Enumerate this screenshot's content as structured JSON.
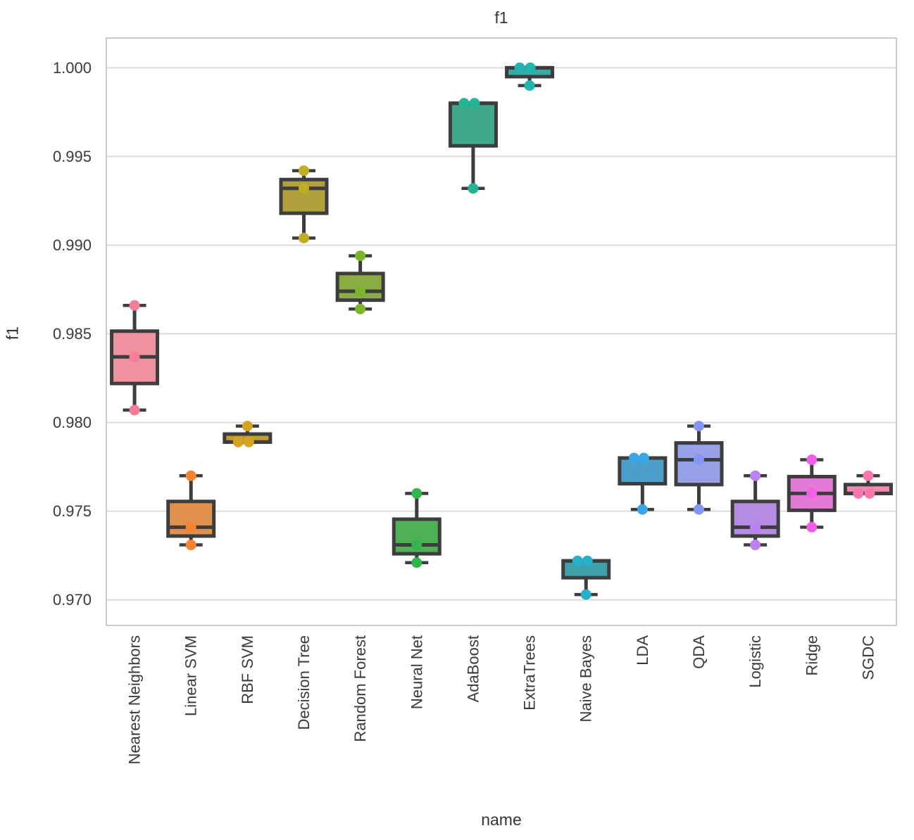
{
  "chart_data": {
    "type": "box",
    "title": "f1",
    "xlabel": "name",
    "ylabel": "f1",
    "ylim": [
      0.96856,
      1.00168
    ],
    "yticks": [
      0.97,
      0.975,
      0.98,
      0.985,
      0.99,
      0.995,
      1.0
    ],
    "ytick_labels": [
      "0.970",
      "0.975",
      "0.980",
      "0.985",
      "0.990",
      "0.995",
      "1.000"
    ],
    "grid": "horizontal",
    "legend": "none",
    "categories": [
      "Nearest Neighbors",
      "Linear SVM",
      "RBF SVM",
      "Decision Tree",
      "Random Forest",
      "Neural Net",
      "AdaBoost",
      "ExtraTrees",
      "Naive Bayes",
      "LDA",
      "QDA",
      "Logistic",
      "Ridge",
      "SGDC"
    ],
    "series": [
      {
        "name": "Nearest Neighbors",
        "box_color": "#f0919f",
        "point_color": "#f87c9a",
        "values": [
          0.9807,
          0.9837,
          0.9866
        ],
        "point_dx": [
          0,
          0,
          0
        ]
      },
      {
        "name": "Linear SVM",
        "box_color": "#e2904e",
        "point_color": "#f58431",
        "values": [
          0.9731,
          0.9741,
          0.977
        ],
        "point_dx": [
          0,
          0,
          0
        ]
      },
      {
        "name": "RBF SVM",
        "box_color": "#c49d32",
        "point_color": "#d6a423",
        "values": [
          0.9789,
          0.9789,
          0.9798
        ],
        "point_dx": [
          -13,
          2,
          0
        ]
      },
      {
        "name": "Decision Tree",
        "box_color": "#b1a13c",
        "point_color": "#c0ad24",
        "values": [
          0.9904,
          0.9932,
          0.9942
        ],
        "point_dx": [
          0,
          0,
          0
        ]
      },
      {
        "name": "Random Forest",
        "box_color": "#89ad44",
        "point_color": "#7cb52a",
        "values": [
          0.9864,
          0.9874,
          0.9894
        ],
        "point_dx": [
          0,
          0,
          0
        ]
      },
      {
        "name": "Neural Net",
        "box_color": "#4eb156",
        "point_color": "#33b54e",
        "values": [
          0.9721,
          0.9731,
          0.976
        ],
        "point_dx": [
          0,
          0,
          0
        ]
      },
      {
        "name": "AdaBoost",
        "box_color": "#40a98c",
        "point_color": "#26b497",
        "values": [
          0.9932,
          0.998,
          0.998
        ],
        "point_dx": [
          0,
          -13,
          2
        ]
      },
      {
        "name": "ExtraTrees",
        "box_color": "#3aaaa5",
        "point_color": "#21b5b2",
        "values": [
          0.999,
          1.0,
          1.0
        ],
        "point_dx": [
          0,
          -14,
          1
        ]
      },
      {
        "name": "Naive Bayes",
        "box_color": "#3f9fab",
        "point_color": "#2aafc9",
        "values": [
          0.9703,
          0.9722,
          0.9722
        ],
        "point_dx": [
          0,
          -12,
          2
        ]
      },
      {
        "name": "LDA",
        "box_color": "#4c9fcb",
        "point_color": "#3aa6e6",
        "values": [
          0.9751,
          0.978,
          0.978
        ],
        "point_dx": [
          0,
          -12,
          2
        ]
      },
      {
        "name": "QDA",
        "box_color": "#96a2e5",
        "point_color": "#8396f2",
        "values": [
          0.9751,
          0.9779,
          0.9798
        ],
        "point_dx": [
          0,
          0,
          0
        ]
      },
      {
        "name": "Logistic",
        "box_color": "#b58ce2",
        "point_color": "#bd80f4",
        "values": [
          0.9731,
          0.9741,
          0.977
        ],
        "point_dx": [
          0,
          0,
          0
        ]
      },
      {
        "name": "Ridge",
        "box_color": "#e47ad8",
        "point_color": "#f25ee8",
        "values": [
          0.9741,
          0.976,
          0.9779
        ],
        "point_dx": [
          0,
          0,
          0
        ]
      },
      {
        "name": "SGDC",
        "box_color": "#ee8cb4",
        "point_color": "#f877ac",
        "values": [
          0.976,
          0.976,
          0.977
        ],
        "point_dx": [
          -14,
          2,
          0
        ]
      }
    ],
    "style_colors": {
      "line": "#3d3d3d",
      "grid": "#dcdcdc",
      "spine": "#cbcbcb",
      "text": "#3a3a3a",
      "background": "#ffffff"
    }
  }
}
